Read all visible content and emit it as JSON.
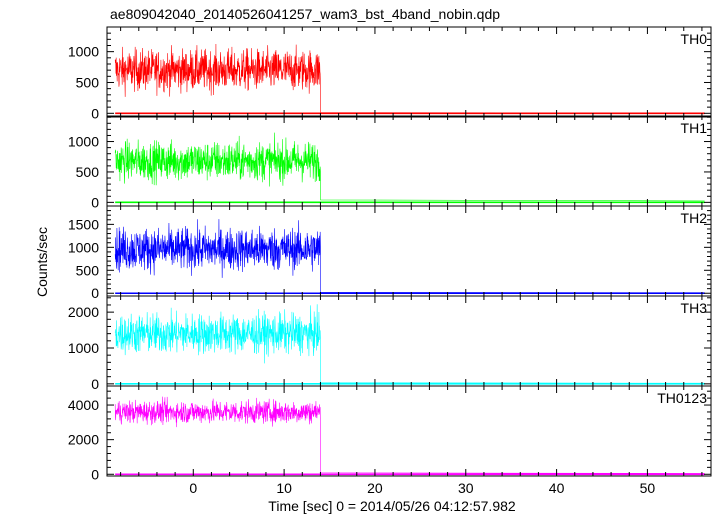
{
  "chart_data": {
    "type": "line",
    "title": "ae809042040_20140526041257_wam3_bst_4band_nobin.qdp",
    "xlabel": "Time [sec] 0 = 2014/05/26 04:12:57.982",
    "ylabel": "Counts/sec",
    "xlim": [
      -9.5,
      57
    ],
    "x_ticks": [
      0,
      10,
      20,
      30,
      40,
      50
    ],
    "x_minor_step": 2,
    "burst_end": 14.0,
    "grid": false,
    "legend": "none",
    "panels": [
      {
        "name": "TH0",
        "color": "#ff0000",
        "ylim": [
          -60,
          1400
        ],
        "y_ticks": [
          0,
          500,
          1000
        ],
        "level": 700,
        "spread": 300,
        "min": 150,
        "max": 1400,
        "tail": 10
      },
      {
        "name": "TH1",
        "color": "#00ff00",
        "ylim": [
          -60,
          1420
        ],
        "y_ticks": [
          0,
          500,
          1000
        ],
        "level": 680,
        "spread": 290,
        "min": 150,
        "max": 1400,
        "tail": 40
      },
      {
        "name": "TH2",
        "color": "#0000ff",
        "ylim": [
          -60,
          1900
        ],
        "y_ticks": [
          0,
          500,
          1000,
          1500
        ],
        "level": 960,
        "spread": 420,
        "min": 150,
        "max": 1850,
        "tail": 20
      },
      {
        "name": "TH3",
        "color": "#00ffff",
        "ylim": [
          -60,
          2450
        ],
        "y_ticks": [
          0,
          1000,
          2000
        ],
        "level": 1400,
        "spread": 500,
        "min": 450,
        "max": 2400,
        "tail": 30
      },
      {
        "name": "TH0123",
        "color": "#ff00ff",
        "ylim": [
          -100,
          5100
        ],
        "y_ticks": [
          0,
          2000,
          4000
        ],
        "level": 3600,
        "spread": 600,
        "min": 2300,
        "max": 5000,
        "tail": 80
      }
    ]
  }
}
